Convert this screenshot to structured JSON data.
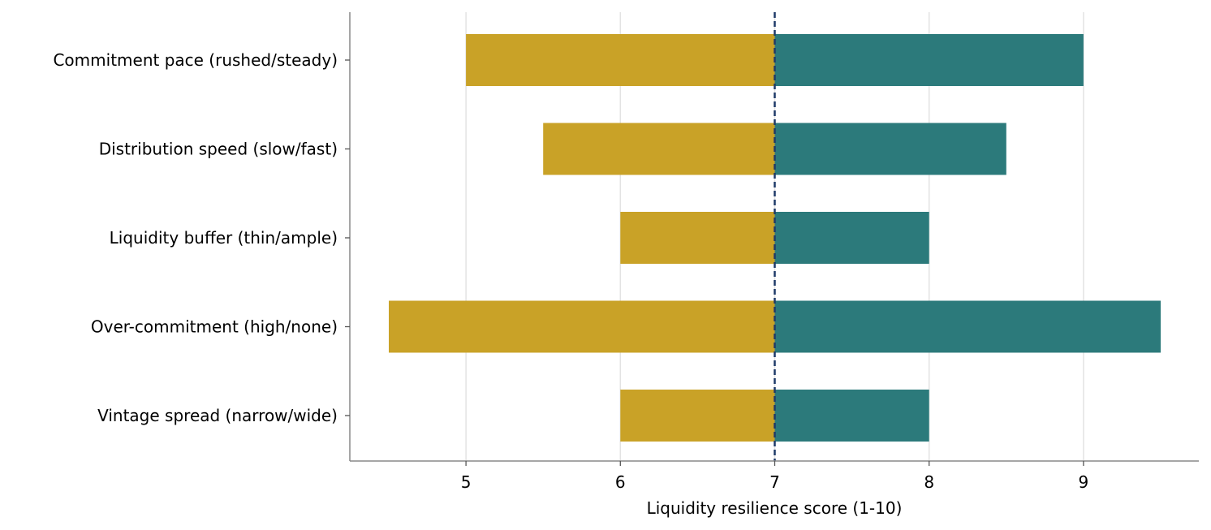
{
  "chart_data": {
    "type": "bar",
    "orientation": "horizontal",
    "layout": "tornado",
    "baseline": 7,
    "categories": [
      "Commitment pace (rushed/steady)",
      "Distribution speed (slow/fast)",
      "Liquidity buffer (thin/ample)",
      "Over-commitment (high/none)",
      "Vintage spread (narrow/wide)"
    ],
    "series": [
      {
        "values": [
          5.0,
          5.5,
          6.0,
          4.5,
          6.0
        ],
        "color": "#C9A227"
      },
      {
        "values": [
          9.0,
          8.5,
          8.0,
          9.5,
          8.0
        ],
        "color": "#2C7A7B"
      }
    ],
    "baseline_color": "#1F3A68",
    "xlabel": "Liquidity resilience score (1-10)",
    "xlim": [
      4.25,
      9.75
    ],
    "xticks": [
      5,
      6,
      7,
      8,
      9
    ],
    "grid": "x",
    "legend": "none"
  }
}
